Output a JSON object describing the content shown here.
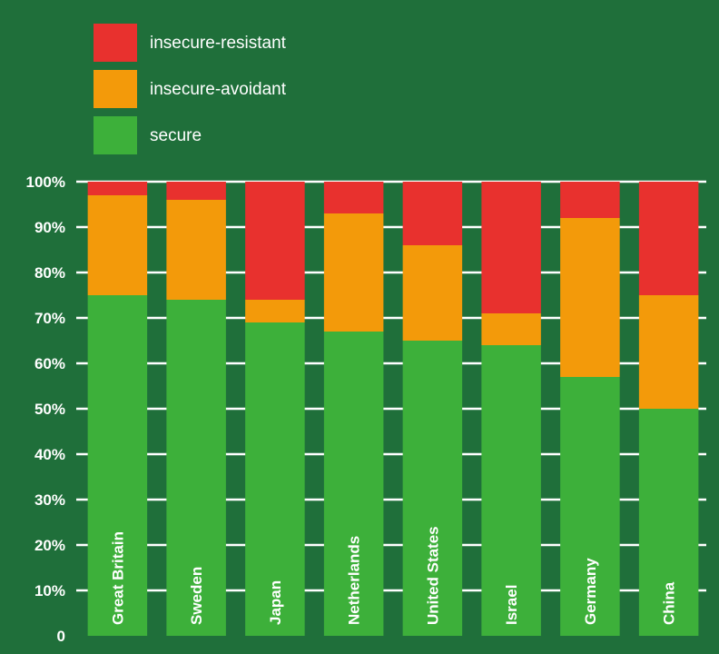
{
  "chart_data": {
    "type": "bar",
    "stacked": true,
    "categories": [
      "Great Britain",
      "Sweden",
      "Japan",
      "Netherlands",
      "United States",
      "Israel",
      "Germany",
      "China"
    ],
    "series": [
      {
        "name": "secure",
        "color": "#3db03a",
        "values": [
          75,
          74,
          69,
          67,
          65,
          64,
          57,
          50
        ]
      },
      {
        "name": "insecure-avoidant",
        "color": "#f39a0a",
        "values": [
          22,
          22,
          5,
          26,
          21,
          7,
          35,
          25
        ]
      },
      {
        "name": "insecure-resistant",
        "color": "#e8312e",
        "values": [
          3,
          4,
          26,
          7,
          14,
          29,
          8,
          25
        ]
      }
    ],
    "legend_order": [
      "insecure-resistant",
      "insecure-avoidant",
      "secure"
    ],
    "y_ticks": [
      "0",
      "10%",
      "20%",
      "30%",
      "40%",
      "50%",
      "60%",
      "70%",
      "80%",
      "90%",
      "100%"
    ],
    "ylim": [
      0,
      100
    ],
    "grid": true,
    "legend_position": "top-left",
    "title": "",
    "xlabel": "",
    "ylabel": "",
    "background_color": "#1f6f3a",
    "gridline_color": "#ffffff"
  }
}
